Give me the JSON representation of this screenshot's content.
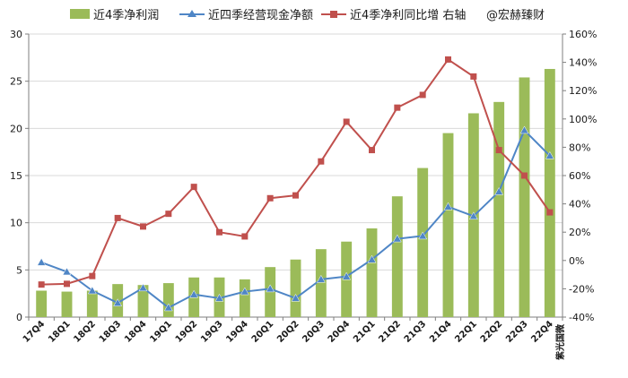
{
  "chart_data": {
    "type": "bar+line",
    "categories": [
      "17Q4",
      "18Q1",
      "18Q2",
      "18Q3",
      "18Q4",
      "19Q1",
      "19Q2",
      "19Q3",
      "19Q4",
      "20Q1",
      "20Q2",
      "20Q3",
      "20Q4",
      "21Q1",
      "21Q2",
      "21Q3",
      "21Q4",
      "22Q1",
      "22Q2",
      "22Q3",
      "22Q4"
    ],
    "left_axis": {
      "ylim": [
        0,
        30
      ],
      "ticks": [
        0,
        5,
        10,
        15,
        20,
        25,
        30
      ]
    },
    "right_axis": {
      "ylim": [
        -40,
        160
      ],
      "ticks": [
        "-40%",
        "-20%",
        "0%",
        "20%",
        "40%",
        "60%",
        "80%",
        "100%",
        "120%",
        "140%",
        "160%"
      ],
      "tick_values": [
        -40,
        -20,
        0,
        20,
        40,
        60,
        80,
        100,
        120,
        140,
        160
      ]
    },
    "series": [
      {
        "name": "近4季净利润",
        "type": "bar",
        "axis": "left",
        "color": "#9bbb59",
        "values": [
          2.8,
          2.7,
          2.8,
          3.5,
          3.4,
          3.6,
          4.2,
          4.2,
          4.0,
          5.3,
          6.1,
          7.2,
          8.0,
          9.4,
          12.8,
          15.8,
          19.5,
          21.6,
          22.8,
          25.4,
          26.3
        ]
      },
      {
        "name": "近四季经营现金净额",
        "type": "line",
        "axis": "left",
        "color": "#4f86c6",
        "marker": "triangle",
        "values": [
          5.8,
          4.8,
          2.8,
          1.5,
          3.1,
          1.0,
          2.4,
          2.0,
          2.7,
          3.0,
          2.0,
          4.0,
          4.3,
          6.1,
          8.3,
          8.6,
          11.7,
          10.7,
          13.3,
          19.8,
          17.1
        ]
      },
      {
        "name": "近4季净利同比增 右轴",
        "type": "line",
        "axis": "right",
        "color": "#c0504d",
        "marker": "square",
        "values": [
          -17,
          -16.5,
          -11,
          30,
          24,
          33,
          52,
          20,
          17,
          44,
          46,
          70,
          98,
          78,
          108,
          117,
          142,
          130,
          78,
          60,
          34
        ]
      }
    ],
    "legend": [
      {
        "label": "近4季净利润"
      },
      {
        "label": "近四季经营现金净额"
      },
      {
        "label": "近4季净利同比增 右轴"
      }
    ],
    "annotations": [
      "@宏赫臻财",
      "紫光国微"
    ]
  }
}
